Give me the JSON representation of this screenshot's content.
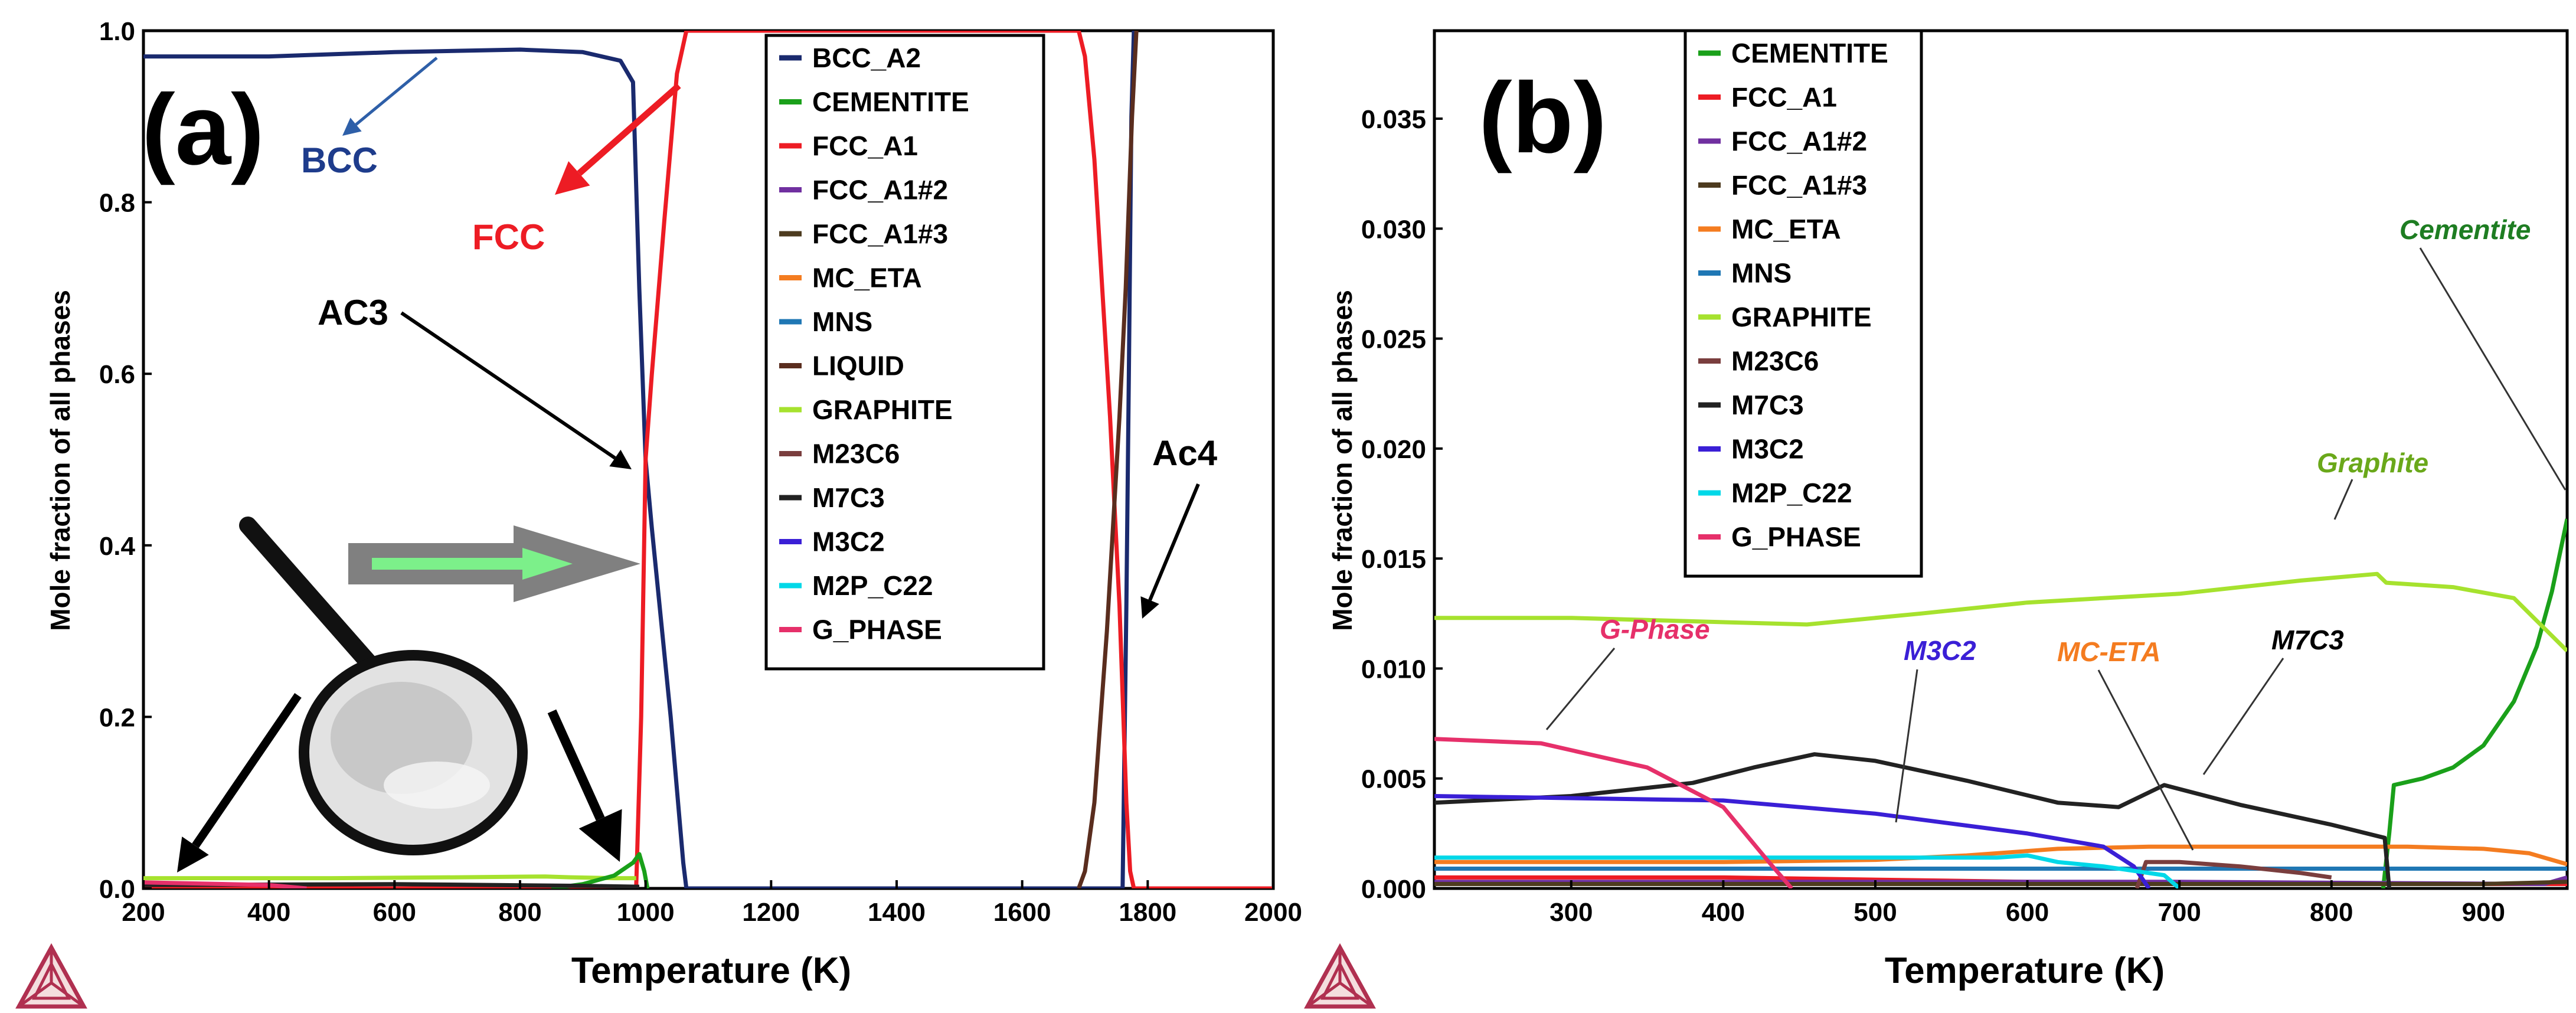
{
  "chart_data": [
    {
      "type": "line",
      "panel_label": "(a)",
      "xlabel": "Temperature (K)",
      "ylabel": "Mole fraction of all phases",
      "xlim": [
        200,
        2000
      ],
      "ylim": [
        0,
        1.0
      ],
      "xticks": [
        "200",
        "400",
        "600",
        "800",
        "1000",
        "1200",
        "1400",
        "1600",
        "1800",
        "2000"
      ],
      "yticks": [
        "0.0",
        "0.2",
        "0.4",
        "0.6",
        "0.8",
        "1.0"
      ],
      "legend": [
        "BCC_A2",
        "CEMENTITE",
        "FCC_A1",
        "FCC_A1#2",
        "FCC_A1#3",
        "MC_ETA",
        "MNS",
        "LIQUID",
        "GRAPHITE",
        "M23C6",
        "M7C3",
        "M3C2",
        "M2P_C22",
        "G_PHASE"
      ],
      "series": [
        {
          "name": "BCC_A2",
          "color": "#1a2a6e",
          "points": [
            [
              200,
              0.97
            ],
            [
              400,
              0.97
            ],
            [
              600,
              0.975
            ],
            [
              800,
              0.978
            ],
            [
              900,
              0.975
            ],
            [
              960,
              0.965
            ],
            [
              980,
              0.94
            ],
            [
              990,
              0.7
            ],
            [
              1000,
              0.5
            ],
            [
              1010,
              0.42
            ],
            [
              1040,
              0.2
            ],
            [
              1060,
              0.03
            ],
            [
              1065,
              0.0
            ],
            [
              1760,
              0.0
            ],
            [
              1766,
              0.33
            ],
            [
              1770,
              0.6
            ],
            [
              1774,
              0.9
            ],
            [
              1778,
              1.0
            ]
          ]
        },
        {
          "name": "FCC_A1",
          "color": "#ed1c24",
          "points": [
            [
              200,
              0.0
            ],
            [
              985,
              0.0
            ],
            [
              993,
              0.2
            ],
            [
              1000,
              0.5
            ],
            [
              1010,
              0.6
            ],
            [
              1030,
              0.78
            ],
            [
              1050,
              0.95
            ],
            [
              1065,
              1.0
            ],
            [
              1690,
              1.0
            ],
            [
              1700,
              0.97
            ],
            [
              1715,
              0.85
            ],
            [
              1740,
              0.55
            ],
            [
              1755,
              0.33
            ],
            [
              1766,
              0.1
            ],
            [
              1772,
              0.02
            ],
            [
              1778,
              0.0
            ],
            [
              2000,
              0.0
            ]
          ]
        },
        {
          "name": "LIQUID",
          "color": "#5a2d1e",
          "points": [
            [
              1690,
              0.0
            ],
            [
              1700,
              0.02
            ],
            [
              1715,
              0.1
            ],
            [
              1735,
              0.3
            ],
            [
              1755,
              0.55
            ],
            [
              1765,
              0.7
            ],
            [
              1775,
              0.9
            ],
            [
              1782,
              1.0
            ]
          ]
        },
        {
          "name": "GRAPHITE",
          "color": "#a6e22e",
          "points": [
            [
              200,
              0.012
            ],
            [
              500,
              0.012
            ],
            [
              700,
              0.013
            ],
            [
              840,
              0.014
            ],
            [
              880,
              0.013
            ],
            [
              950,
              0.012
            ],
            [
              985,
              0.012
            ]
          ]
        },
        {
          "name": "CEMENTITE",
          "color": "#1aa01a",
          "points": [
            [
              850,
              0.0
            ],
            [
              900,
              0.005
            ],
            [
              950,
              0.015
            ],
            [
              980,
              0.03
            ],
            [
              990,
              0.04
            ],
            [
              998,
              0.02
            ],
            [
              1003,
              0.0
            ]
          ]
        },
        {
          "name": "M7C3",
          "color": "#222222",
          "points": [
            [
              200,
              0.004
            ],
            [
              600,
              0.005
            ],
            [
              900,
              0.003
            ],
            [
              990,
              0.002
            ]
          ]
        },
        {
          "name": "G_PHASE",
          "color": "#e6306a",
          "points": [
            [
              200,
              0.007
            ],
            [
              400,
              0.004
            ],
            [
              460,
              0.0
            ]
          ]
        }
      ],
      "annotations": [
        "BCC",
        "FCC",
        "AC3",
        "Ac4"
      ]
    },
    {
      "type": "line",
      "panel_label": "(b)",
      "xlabel": "Temperature (K)",
      "ylabel": "Mole fraction of all phases",
      "xlim": [
        210,
        955
      ],
      "ylim": [
        0,
        0.039
      ],
      "xticks": [
        "300",
        "400",
        "500",
        "600",
        "700",
        "800",
        "900"
      ],
      "yticks": [
        "0.000",
        "0.005",
        "0.010",
        "0.015",
        "0.020",
        "0.025",
        "0.030",
        "0.035"
      ],
      "legend": [
        "CEMENTITE",
        "FCC_A1",
        "FCC_A1#2",
        "FCC_A1#3",
        "MC_ETA",
        "MNS",
        "GRAPHITE",
        "M23C6",
        "M7C3",
        "M3C2",
        "M2P_C22",
        "G_PHASE"
      ],
      "series": [
        {
          "name": "CEMENTITE",
          "color": "#1aa01a",
          "points": [
            [
              834,
              0.0
            ],
            [
              838,
              0.0025
            ],
            [
              841,
              0.0047
            ],
            [
              860,
              0.005
            ],
            [
              880,
              0.0055
            ],
            [
              900,
              0.0065
            ],
            [
              920,
              0.0085
            ],
            [
              935,
              0.011
            ],
            [
              945,
              0.0135
            ],
            [
              955,
              0.0168
            ]
          ]
        },
        {
          "name": "FCC_A1",
          "color": "#ed1c24",
          "points": [
            [
              210,
              0.0005
            ],
            [
              400,
              0.0005
            ],
            [
              600,
              0.0003
            ],
            [
              840,
              0.0002
            ],
            [
              955,
              0.0002
            ]
          ]
        },
        {
          "name": "FCC_A1#2",
          "color": "#7030a0",
          "points": [
            [
              210,
              0.0003
            ],
            [
              700,
              0.0003
            ],
            [
              940,
              0.0002
            ],
            [
              955,
              0.0005
            ]
          ]
        },
        {
          "name": "FCC_A1#3",
          "color": "#4d3b1f",
          "points": [
            [
              210,
              0.0002
            ],
            [
              900,
              0.0002
            ],
            [
              955,
              0.0003
            ]
          ]
        },
        {
          "name": "MC_ETA",
          "color": "#f47c20",
          "points": [
            [
              210,
              0.0012
            ],
            [
              400,
              0.0012
            ],
            [
              500,
              0.0013
            ],
            [
              560,
              0.0015
            ],
            [
              620,
              0.0018
            ],
            [
              680,
              0.0019
            ],
            [
              780,
              0.0019
            ],
            [
              850,
              0.0019
            ],
            [
              900,
              0.0018
            ],
            [
              930,
              0.0016
            ],
            [
              955,
              0.0011
            ]
          ]
        },
        {
          "name": "MNS",
          "color": "#1f77b4",
          "points": [
            [
              210,
              0.0009
            ],
            [
              955,
              0.0009
            ]
          ]
        },
        {
          "name": "GRAPHITE",
          "color": "#a6e22e",
          "points": [
            [
              210,
              0.0123
            ],
            [
              300,
              0.0123
            ],
            [
              455,
              0.012
            ],
            [
              530,
              0.0125
            ],
            [
              600,
              0.013
            ],
            [
              700,
              0.0134
            ],
            [
              780,
              0.014
            ],
            [
              830,
              0.0143
            ],
            [
              836,
              0.0139
            ],
            [
              880,
              0.0137
            ],
            [
              920,
              0.0132
            ],
            [
              955,
              0.0108
            ]
          ]
        },
        {
          "name": "M23C6",
          "color": "#7a3e3e",
          "points": [
            [
              672,
              0.0
            ],
            [
              678,
              0.0012
            ],
            [
              700,
              0.0012
            ],
            [
              740,
              0.001
            ],
            [
              780,
              0.0007
            ],
            [
              800,
              0.0005
            ]
          ]
        },
        {
          "name": "M7C3",
          "color": "#222222",
          "points": [
            [
              210,
              0.0039
            ],
            [
              300,
              0.0042
            ],
            [
              380,
              0.0048
            ],
            [
              420,
              0.0055
            ],
            [
              460,
              0.0061
            ],
            [
              500,
              0.0058
            ],
            [
              560,
              0.0049
            ],
            [
              620,
              0.0039
            ],
            [
              660,
              0.0037
            ],
            [
              690,
              0.0047
            ],
            [
              740,
              0.0038
            ],
            [
              800,
              0.0029
            ],
            [
              835,
              0.0023
            ],
            [
              838,
              0.0
            ]
          ]
        },
        {
          "name": "M3C2",
          "color": "#3a1fd6",
          "points": [
            [
              210,
              0.0042
            ],
            [
              400,
              0.004
            ],
            [
              500,
              0.0034
            ],
            [
              600,
              0.0025
            ],
            [
              650,
              0.0019
            ],
            [
              670,
              0.001
            ],
            [
              680,
              0.0
            ]
          ]
        },
        {
          "name": "M2P_C22",
          "color": "#00d8e8",
          "points": [
            [
              210,
              0.0014
            ],
            [
              580,
              0.0014
            ],
            [
              600,
              0.0015
            ],
            [
              620,
              0.0012
            ],
            [
              650,
              0.001
            ],
            [
              690,
              0.0006
            ],
            [
              700,
              0.0
            ]
          ]
        },
        {
          "name": "G_PHASE",
          "color": "#e6306a",
          "points": [
            [
              210,
              0.0068
            ],
            [
              280,
              0.0066
            ],
            [
              350,
              0.0055
            ],
            [
              400,
              0.0037
            ],
            [
              430,
              0.0012
            ],
            [
              445,
              0.0
            ]
          ]
        }
      ],
      "annotations": [
        "Cementite",
        "Graphite",
        "G-Phase",
        "M3C2",
        "MC-ETA",
        "M7C3"
      ]
    }
  ]
}
